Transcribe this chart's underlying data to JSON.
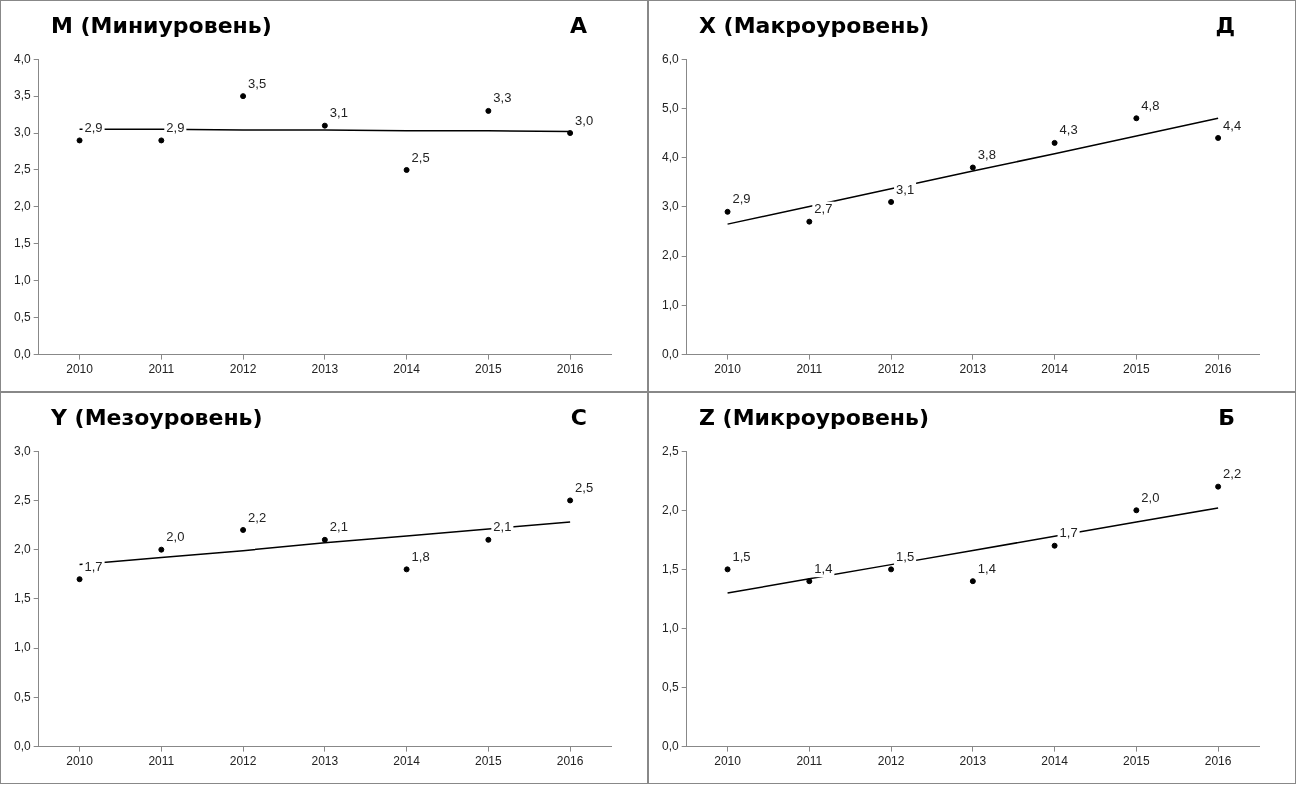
{
  "chart_data": [
    {
      "type": "scatter",
      "title": "M (Миниуровень)",
      "annotations": [
        "А"
      ],
      "categories": [
        "2010",
        "2011",
        "2012",
        "2013",
        "2014",
        "2015",
        "2016"
      ],
      "ylim": [
        0,
        4
      ],
      "yticks": [
        {
          "value": 0,
          "label": "0,0"
        },
        {
          "value": 0.5,
          "label": "0,5"
        },
        {
          "value": 1,
          "label": "1,0"
        },
        {
          "value": 1.5,
          "label": "1,5"
        },
        {
          "value": 2,
          "label": "2,0"
        },
        {
          "value": 2.5,
          "label": "2,5"
        },
        {
          "value": 3,
          "label": "3,0"
        },
        {
          "value": 3.5,
          "label": "3,5"
        },
        {
          "value": 4,
          "label": "4,0"
        }
      ],
      "grid": false,
      "legend": false,
      "series": [
        {
          "color": "#000000",
          "marker": "circle",
          "values": [
            2.9,
            2.9,
            3.5,
            3.1,
            2.5,
            3.3,
            3.0
          ],
          "value_labels": [
            "2,9",
            "2,9",
            "3,5",
            "3,1",
            "2,5",
            "3,3",
            "3,0"
          ]
        },
        {
          "type": "line",
          "color": "#000000",
          "values": [
            3.05,
            3.05,
            3.04,
            3.04,
            3.03,
            3.03,
            3.02
          ],
          "line_style": "solid"
        }
      ]
    },
    {
      "type": "scatter",
      "title": "X (Макроуровень)",
      "annotations": [
        "Д"
      ],
      "categories": [
        "2010",
        "2011",
        "2012",
        "2013",
        "2014",
        "2015",
        "2016"
      ],
      "ylim": [
        0,
        6
      ],
      "yticks": [
        {
          "value": 0,
          "label": "0,0"
        },
        {
          "value": 1,
          "label": "1,0"
        },
        {
          "value": 2,
          "label": "2,0"
        },
        {
          "value": 3,
          "label": "3,0"
        },
        {
          "value": 4,
          "label": "4,0"
        },
        {
          "value": 5,
          "label": "5,0"
        },
        {
          "value": 6,
          "label": "6,0"
        }
      ],
      "grid": false,
      "legend": false,
      "series": [
        {
          "color": "#000000",
          "marker": "circle",
          "values": [
            2.9,
            2.7,
            3.1,
            3.8,
            4.3,
            4.8,
            4.4
          ],
          "value_labels": [
            "2,9",
            "2,7",
            "3,1",
            "3,8",
            "4,3",
            "4,8",
            "4,4"
          ]
        },
        {
          "type": "line",
          "color": "#000000",
          "values": [
            2.65,
            3.01,
            3.37,
            3.73,
            4.08,
            4.44,
            4.8
          ],
          "line_style": "solid"
        }
      ]
    },
    {
      "type": "scatter",
      "title": "Y (Мезоуровень)",
      "annotations": [
        "С"
      ],
      "categories": [
        "2010",
        "2011",
        "2012",
        "2013",
        "2014",
        "2015",
        "2016"
      ],
      "ylim": [
        0,
        3
      ],
      "yticks": [
        {
          "value": 0,
          "label": "0,0"
        },
        {
          "value": 0.5,
          "label": "0,5"
        },
        {
          "value": 1,
          "label": "1,0"
        },
        {
          "value": 1.5,
          "label": "1,5"
        },
        {
          "value": 2,
          "label": "2,0"
        },
        {
          "value": 2.5,
          "label": "2,5"
        },
        {
          "value": 3,
          "label": "3,0"
        }
      ],
      "grid": false,
      "legend": false,
      "series": [
        {
          "color": "#000000",
          "marker": "circle",
          "values": [
            1.7,
            2.0,
            2.2,
            2.1,
            1.8,
            2.1,
            2.5
          ],
          "value_labels": [
            "1,7",
            "2,0",
            "2,2",
            "2,1",
            "1,8",
            "2,1",
            "2,5"
          ]
        },
        {
          "type": "line",
          "color": "#000000",
          "values": [
            1.85,
            1.92,
            1.99,
            2.07,
            2.14,
            2.21,
            2.28
          ],
          "line_style": "solid"
        }
      ]
    },
    {
      "type": "scatter",
      "title": "Z (Микроуровень)",
      "annotations": [
        "Б"
      ],
      "categories": [
        "2010",
        "2011",
        "2012",
        "2013",
        "2014",
        "2015",
        "2016"
      ],
      "ylim": [
        0,
        2.5
      ],
      "yticks": [
        {
          "value": 0,
          "label": "0,0"
        },
        {
          "value": 0.5,
          "label": "0,5"
        },
        {
          "value": 1,
          "label": "1,0"
        },
        {
          "value": 1.5,
          "label": "1,5"
        },
        {
          "value": 2,
          "label": "2,0"
        },
        {
          "value": 2.5,
          "label": "2,5"
        }
      ],
      "grid": false,
      "legend": false,
      "series": [
        {
          "color": "#000000",
          "marker": "circle",
          "values": [
            1.5,
            1.4,
            1.5,
            1.4,
            1.7,
            2.0,
            2.2
          ],
          "value_labels": [
            "1,5",
            "1,4",
            "1,5",
            "1,4",
            "1,7",
            "2,0",
            "2,2"
          ]
        },
        {
          "type": "line",
          "color": "#000000",
          "values": [
            1.3,
            1.42,
            1.54,
            1.66,
            1.78,
            1.9,
            2.02
          ],
          "line_style": "solid"
        }
      ]
    }
  ]
}
